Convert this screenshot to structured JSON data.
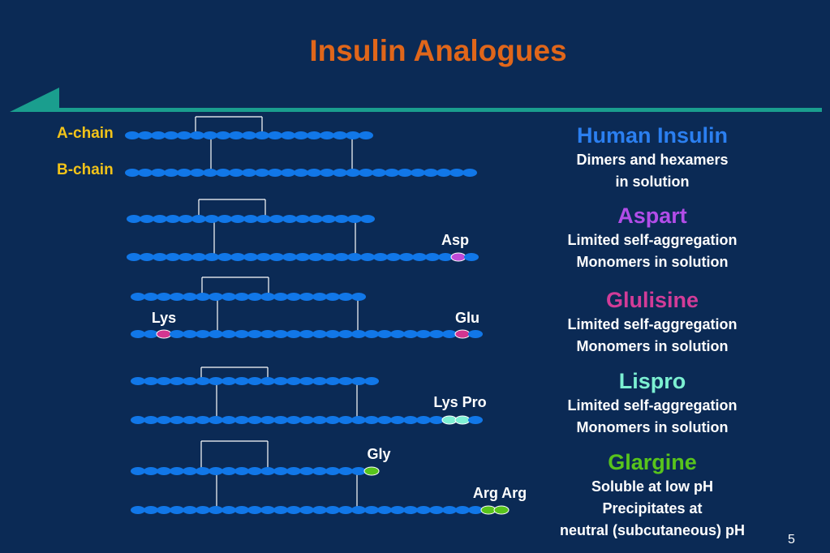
{
  "title": "Insulin Analogues",
  "labels": {
    "a_chain": "A-chain",
    "b_chain": "B-chain"
  },
  "page_number": "5",
  "colors": {
    "background": "#0b2a55",
    "title": "#e0661a",
    "chain": "#1177e8",
    "rule": "#1a9e8e",
    "chain_label": "#f2c319"
  },
  "analogues": [
    {
      "name": "Human Insulin",
      "color": "#2b7ff0",
      "lines": [
        "Dimers and hexamers",
        "in solution"
      ],
      "residues": []
    },
    {
      "name": "Aspart",
      "color": "#b24de8",
      "lines": [
        "Limited self-aggregation",
        "Monomers in solution"
      ],
      "residues": [
        {
          "label": "Asp",
          "color": "#c04ad8",
          "count": 1
        }
      ]
    },
    {
      "name": "Glulisine",
      "color": "#d23c98",
      "lines": [
        "Limited self-aggregation",
        "Monomers in solution"
      ],
      "residues": [
        {
          "label": "Lys",
          "color": "#d43590",
          "count": 1
        },
        {
          "label": "Glu",
          "color": "#d43590",
          "count": 1
        }
      ]
    },
    {
      "name": "Lispro",
      "color": "#7cf0d2",
      "lines": [
        "Limited self-aggregation",
        "Monomers in solution"
      ],
      "residues": [
        {
          "label": "Lys Pro",
          "color": "#7ef0d4",
          "count": 2
        }
      ]
    },
    {
      "name": "Glargine",
      "color": "#58c41c",
      "lines": [
        "Soluble at low pH",
        "Precipitates at",
        "neutral (subcutaneous) pH"
      ],
      "residues": [
        {
          "label": "Gly",
          "color": "#58c41c",
          "count": 1
        },
        {
          "label": "Arg Arg",
          "color": "#58c41c",
          "count": 2
        }
      ]
    }
  ]
}
